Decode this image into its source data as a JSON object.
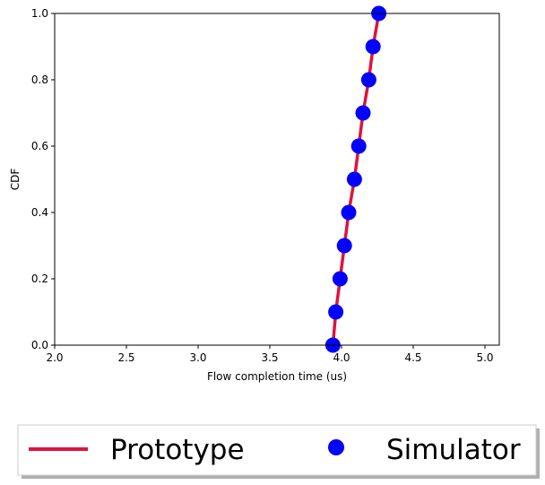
{
  "chart_data": {
    "type": "line",
    "xlabel": "Flow completion time (us)",
    "ylabel": "CDF",
    "xlim": [
      2.0,
      5.1
    ],
    "ylim": [
      0.0,
      1.0
    ],
    "x_ticks": [
      "2.0",
      "2.5",
      "3.0",
      "3.5",
      "4.0",
      "4.5",
      "5.0"
    ],
    "y_ticks": [
      "0.0",
      "0.2",
      "0.4",
      "0.6",
      "0.8",
      "1.0"
    ],
    "grid": false,
    "legend_position": "bottom",
    "series": [
      {
        "name": "Prototype",
        "style": "line",
        "color": "#dc143c",
        "x": [
          3.94,
          3.96,
          3.99,
          4.02,
          4.05,
          4.09,
          4.12,
          4.15,
          4.19,
          4.22,
          4.26
        ],
        "y": [
          0.0,
          0.1,
          0.2,
          0.3,
          0.4,
          0.5,
          0.6,
          0.7,
          0.8,
          0.9,
          1.0
        ]
      },
      {
        "name": "Simulator",
        "style": "marker",
        "color": "#0000ff",
        "x": [
          3.94,
          3.96,
          3.99,
          4.02,
          4.05,
          4.09,
          4.12,
          4.15,
          4.19,
          4.22,
          4.26
        ],
        "y": [
          0.0,
          0.1,
          0.2,
          0.3,
          0.4,
          0.5,
          0.6,
          0.7,
          0.8,
          0.9,
          1.0
        ]
      }
    ]
  }
}
